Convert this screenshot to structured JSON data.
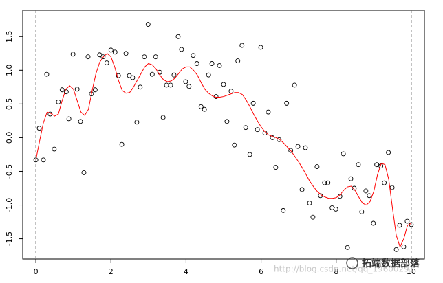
{
  "chart_data": {
    "type": "scatter",
    "xlim": [
      -0.35,
      10.35
    ],
    "ylim": [
      -1.8,
      1.89
    ],
    "xticks": [
      0,
      2,
      4,
      6,
      8,
      10
    ],
    "yticks": [
      1.5,
      {
        "value": 1.0,
        "label": "1.0"
      },
      0.5,
      {
        "value": 0.0,
        "label": "0.0"
      },
      -0.5,
      {
        "value": -1.0,
        "label": "-1.0"
      },
      -1.5
    ],
    "vlines": [
      0,
      10
    ],
    "points": {
      "color": "#000000",
      "x": [
        0,
        0.09,
        0.2,
        0.29,
        0.38,
        0.49,
        0.6,
        0.7,
        0.81,
        0.88,
        0.99,
        1.1,
        1.19,
        1.28,
        1.39,
        1.48,
        1.58,
        1.7,
        1.79,
        1.89,
        2.0,
        2.11,
        2.2,
        2.29,
        2.4,
        2.49,
        2.58,
        2.69,
        2.78,
        2.89,
        2.99,
        3.1,
        3.19,
        3.3,
        3.39,
        3.48,
        3.59,
        3.68,
        3.79,
        3.88,
        3.99,
        4.08,
        4.19,
        4.29,
        4.4,
        4.49,
        4.6,
        4.69,
        4.8,
        4.89,
        5.0,
        5.09,
        5.2,
        5.29,
        5.38,
        5.49,
        5.59,
        5.7,
        5.79,
        5.9,
        5.99,
        6.1,
        6.19,
        6.3,
        6.39,
        6.48,
        6.59,
        6.68,
        6.79,
        6.89,
        6.98,
        7.09,
        7.18,
        7.29,
        7.38,
        7.49,
        7.58,
        7.69,
        7.78,
        7.89,
        7.99,
        8.1,
        8.19,
        8.3,
        8.39,
        8.48,
        8.59,
        8.68,
        8.79,
        8.88,
        8.99,
        9.08,
        9.19,
        9.28,
        9.39,
        9.49,
        9.6,
        9.69,
        9.8,
        9.89,
        10.0
      ],
      "y": [
        -0.33,
        0.14,
        -0.33,
        0.94,
        0.35,
        -0.17,
        0.53,
        0.71,
        0.68,
        0.28,
        1.24,
        0.72,
        0.24,
        -0.52,
        1.2,
        0.65,
        0.71,
        1.23,
        1.2,
        1.11,
        1.3,
        1.27,
        0.92,
        -0.1,
        1.25,
        0.92,
        0.89,
        0.23,
        0.75,
        1.2,
        1.68,
        0.94,
        1.2,
        0.97,
        0.3,
        0.78,
        0.78,
        0.93,
        1.5,
        1.31,
        0.83,
        0.76,
        1.22,
        1.1,
        0.46,
        0.42,
        0.93,
        1.1,
        0.61,
        1.07,
        0.79,
        0.24,
        0.69,
        -0.11,
        1.14,
        1.37,
        0.15,
        -0.25,
        0.51,
        0.12,
        1.34,
        0.07,
        0.38,
        0.0,
        -0.44,
        -0.03,
        -1.08,
        0.51,
        -0.19,
        0.78,
        -0.13,
        -0.77,
        -0.15,
        -0.97,
        -1.18,
        -0.43,
        -0.86,
        -0.67,
        -0.67,
        -1.04,
        -1.06,
        -0.87,
        -0.24,
        -1.63,
        -0.61,
        -0.75,
        -0.4,
        -1.1,
        -0.79,
        -0.86,
        -1.27,
        -0.4,
        -0.42,
        -0.67,
        -0.22,
        -0.74,
        -1.66,
        -1.3,
        -1.62,
        -1.24,
        -1.29
      ]
    },
    "smooth": {
      "color": "#ff0000",
      "x": [
        0,
        0.1,
        0.2,
        0.3,
        0.4,
        0.5,
        0.6,
        0.7,
        0.8,
        0.9,
        1.0,
        1.1,
        1.2,
        1.3,
        1.4,
        1.5,
        1.6,
        1.7,
        1.8,
        1.9,
        2.0,
        2.1,
        2.2,
        2.3,
        2.4,
        2.5,
        2.6,
        2.7,
        2.8,
        2.9,
        3.0,
        3.1,
        3.2,
        3.3,
        3.4,
        3.5,
        3.6,
        3.7,
        3.8,
        3.9,
        4.0,
        4.1,
        4.2,
        4.3,
        4.4,
        4.5,
        4.6,
        4.7,
        4.8,
        4.9,
        5.0,
        5.1,
        5.2,
        5.3,
        5.4,
        5.5,
        5.6,
        5.7,
        5.8,
        5.9,
        6.0,
        6.1,
        6.2,
        6.3,
        6.4,
        6.5,
        6.6,
        6.7,
        6.8,
        6.9,
        7.0,
        7.1,
        7.2,
        7.3,
        7.4,
        7.5,
        7.6,
        7.7,
        7.8,
        7.9,
        8.0,
        8.1,
        8.2,
        8.3,
        8.4,
        8.5,
        8.6,
        8.7,
        8.8,
        8.9,
        9.0,
        9.1,
        9.2,
        9.3,
        9.4,
        9.5,
        9.6,
        9.7,
        9.8,
        9.9,
        10.0
      ],
      "y": [
        -0.33,
        -0.05,
        0.22,
        0.38,
        0.36,
        0.32,
        0.35,
        0.55,
        0.72,
        0.77,
        0.72,
        0.55,
        0.38,
        0.33,
        0.42,
        0.7,
        0.95,
        1.12,
        1.2,
        1.25,
        1.2,
        1.05,
        0.85,
        0.7,
        0.66,
        0.67,
        0.75,
        0.85,
        0.95,
        1.05,
        1.1,
        1.08,
        1.02,
        0.93,
        0.86,
        0.83,
        0.84,
        0.88,
        0.95,
        1.02,
        1.05,
        1.05,
        1.0,
        0.93,
        0.82,
        0.72,
        0.66,
        0.62,
        0.6,
        0.6,
        0.61,
        0.63,
        0.65,
        0.67,
        0.67,
        0.64,
        0.56,
        0.46,
        0.35,
        0.25,
        0.16,
        0.09,
        0.04,
        0.02,
        0.0,
        -0.03,
        -0.08,
        -0.14,
        -0.2,
        -0.28,
        -0.36,
        -0.45,
        -0.55,
        -0.65,
        -0.73,
        -0.8,
        -0.85,
        -0.88,
        -0.9,
        -0.9,
        -0.89,
        -0.85,
        -0.78,
        -0.73,
        -0.72,
        -0.78,
        -0.88,
        -0.97,
        -1.0,
        -0.95,
        -0.8,
        -0.55,
        -0.38,
        -0.4,
        -0.62,
        -1.05,
        -1.45,
        -1.62,
        -1.5,
        -1.3,
        -1.27
      ]
    },
    "watermark": {
      "url": "http://blog.csdn.net/qq_19600291",
      "brand": "拓端数据部落"
    }
  }
}
